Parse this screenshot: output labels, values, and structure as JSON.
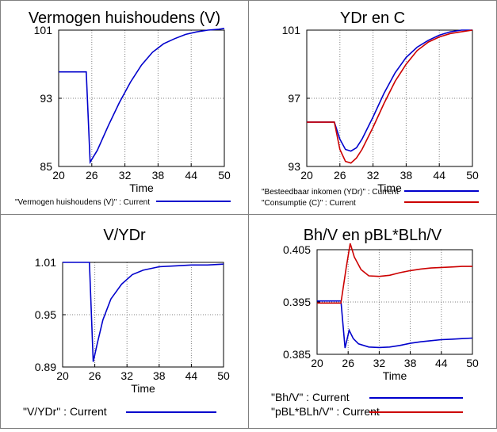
{
  "chart_data": [
    {
      "type": "line",
      "title": "Vermogen huishoudens (V)",
      "xlabel": "Time",
      "ylabel": "",
      "xlim": [
        20,
        50
      ],
      "ylim": [
        85,
        101
      ],
      "xticks": [
        "20",
        "26",
        "32",
        "38",
        "44",
        "50"
      ],
      "yticks": [
        "101",
        "93",
        "85"
      ],
      "series": [
        {
          "name": "\"Vermogen huishoudens (V)\" : Current",
          "color": "#0000cc",
          "x": [
            20,
            25,
            25.7,
            27,
            29,
            31,
            33,
            35,
            37,
            39,
            41,
            43,
            45,
            47,
            49,
            50
          ],
          "y": [
            96.1,
            96.1,
            85.5,
            86.9,
            89.8,
            92.5,
            94.9,
            96.9,
            98.4,
            99.4,
            100.0,
            100.5,
            100.8,
            101.0,
            101.1,
            101.2
          ]
        }
      ],
      "legend_position": "bottom"
    },
    {
      "type": "line",
      "title": "YDr en C",
      "xlabel": "Time",
      "ylabel": "",
      "xlim": [
        20,
        50
      ],
      "ylim": [
        93,
        101
      ],
      "xticks": [
        "20",
        "26",
        "32",
        "38",
        "44",
        "50"
      ],
      "yticks": [
        "101",
        "97",
        "93"
      ],
      "series": [
        {
          "name": "\"Besteedbaar inkomen (YDr)\" : Current",
          "color": "#0000cc",
          "x": [
            20,
            25,
            26,
            27,
            28,
            29,
            30,
            32,
            34,
            36,
            38,
            40,
            42,
            44,
            46,
            48,
            50
          ],
          "y": [
            95.6,
            95.6,
            94.6,
            94.0,
            93.9,
            94.1,
            94.6,
            95.9,
            97.3,
            98.5,
            99.4,
            100.0,
            100.4,
            100.7,
            100.9,
            101.0,
            101.0
          ]
        },
        {
          "name": "\"Consumptie (C)\" : Current",
          "color": "#cc0000",
          "x": [
            20,
            25,
            26,
            27,
            28,
            29,
            30,
            32,
            34,
            36,
            38,
            40,
            42,
            44,
            46,
            48,
            50
          ],
          "y": [
            95.6,
            95.6,
            94.0,
            93.3,
            93.2,
            93.5,
            94.0,
            95.3,
            96.7,
            98.0,
            99.0,
            99.8,
            100.3,
            100.6,
            100.8,
            100.9,
            101.0
          ]
        }
      ],
      "legend_position": "bottom"
    },
    {
      "type": "line",
      "title": "V/YDr",
      "xlabel": "Time",
      "ylabel": "",
      "xlim": [
        20,
        50
      ],
      "ylim": [
        0.89,
        1.01
      ],
      "xticks": [
        "20",
        "26",
        "32",
        "38",
        "44",
        "50"
      ],
      "yticks": [
        "1.01",
        "0.95",
        "0.89"
      ],
      "series": [
        {
          "name": "\"V/YDr\" : Current",
          "color": "#0000cc",
          "x": [
            20,
            25,
            25.7,
            26.5,
            27.5,
            29,
            31,
            33,
            35,
            38,
            41,
            44,
            47,
            50
          ],
          "y": [
            1.01,
            1.01,
            0.896,
            0.918,
            0.944,
            0.968,
            0.985,
            0.996,
            1.001,
            1.005,
            1.006,
            1.007,
            1.007,
            1.008
          ]
        }
      ],
      "legend_position": "bottom"
    },
    {
      "type": "line",
      "title": "Bh/V en pBL*BLh/V",
      "xlabel": "Time",
      "ylabel": "",
      "xlim": [
        20,
        50
      ],
      "ylim": [
        0.385,
        0.405
      ],
      "xticks": [
        "20",
        "26",
        "32",
        "38",
        "44",
        "50"
      ],
      "yticks": [
        "0.405",
        "0.395",
        "0.385"
      ],
      "series": [
        {
          "name": "\"Bh/V\" : Current",
          "color": "#0000cc",
          "x": [
            20,
            24.6,
            25.4,
            26.2,
            27,
            28,
            30,
            32,
            34,
            36,
            38,
            40,
            42,
            44,
            46,
            48,
            50
          ],
          "y": [
            0.3952,
            0.3952,
            0.3862,
            0.3896,
            0.388,
            0.387,
            0.3864,
            0.3863,
            0.3864,
            0.3867,
            0.3871,
            0.3874,
            0.3876,
            0.3878,
            0.3879,
            0.388,
            0.3881
          ]
        },
        {
          "name": "\"pBL*BLh/V\" : Current",
          "color": "#cc0000",
          "x": [
            20,
            24.6,
            25.6,
            26.4,
            27.2,
            28.5,
            30,
            32,
            34,
            36,
            38,
            40,
            42,
            44,
            46,
            48,
            50
          ],
          "y": [
            0.3948,
            0.3948,
            0.4014,
            0.4062,
            0.4036,
            0.4012,
            0.4,
            0.3999,
            0.4001,
            0.4006,
            0.401,
            0.4013,
            0.4015,
            0.4016,
            0.4017,
            0.4018,
            0.4018
          ]
        }
      ],
      "legend_position": "bottom"
    }
  ]
}
